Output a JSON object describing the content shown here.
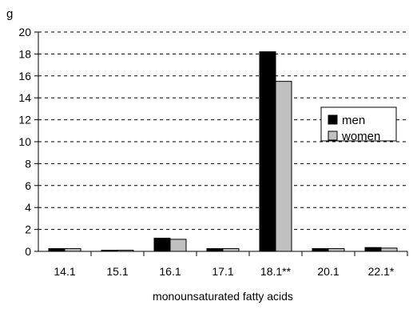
{
  "chart_data": {
    "type": "bar",
    "title": "",
    "ylabel": "g",
    "xlabel": "monounsaturated fatty acids",
    "categories": [
      "14.1",
      "15.1",
      "16.1",
      "17.1",
      "18.1**",
      "20.1",
      "22.1*"
    ],
    "series": [
      {
        "name": "men",
        "values": [
          0.25,
          0.1,
          1.2,
          0.25,
          18.2,
          0.25,
          0.35
        ],
        "color": "#000000"
      },
      {
        "name": "women",
        "values": [
          0.25,
          0.1,
          1.1,
          0.25,
          15.5,
          0.25,
          0.3
        ],
        "color": "#c0c0c0"
      }
    ],
    "ylim": [
      0,
      20
    ],
    "yticks": [
      0,
      2,
      4,
      6,
      8,
      10,
      12,
      14,
      16,
      18,
      20
    ],
    "grid": true,
    "legend_position": "right"
  }
}
